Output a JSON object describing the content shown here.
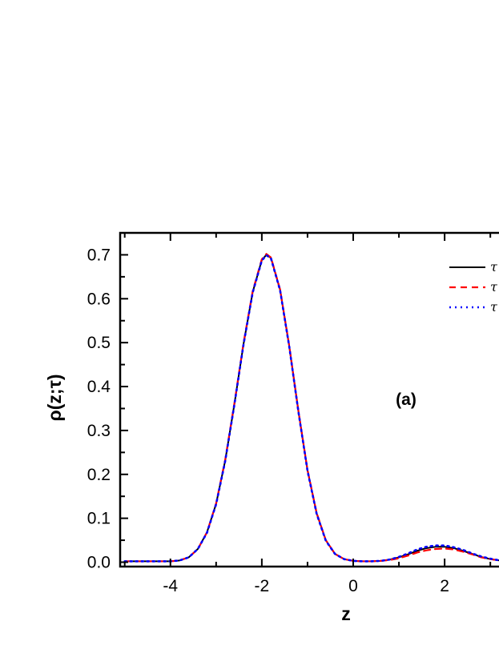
{
  "chart_data": {
    "type": "line",
    "xlabel": "z",
    "ylabel": "ρ(z;τ)",
    "annotation": "(a)",
    "xlim": [
      -5.1,
      3.4
    ],
    "ylim": [
      -0.01,
      0.75
    ],
    "xticks": [
      -4,
      -2,
      0,
      2
    ],
    "xtick_labels": [
      "-4",
      "-2",
      "0",
      "2"
    ],
    "yticks": [
      0.0,
      0.1,
      0.2,
      0.3,
      0.4,
      0.5,
      0.6,
      0.7
    ],
    "ytick_labels": [
      "0.0",
      "0.1",
      "0.2",
      "0.3",
      "0.4",
      "0.5",
      "0.6",
      "0.7"
    ],
    "grid": false,
    "legend_position": "top-right",
    "x": [
      -5.0,
      -4.5,
      -4.0,
      -3.8,
      -3.6,
      -3.4,
      -3.2,
      -3.0,
      -2.8,
      -2.6,
      -2.4,
      -2.2,
      -2.0,
      -1.9,
      -1.8,
      -1.6,
      -1.4,
      -1.2,
      -1.0,
      -0.8,
      -0.6,
      -0.4,
      -0.2,
      0.0,
      0.2,
      0.4,
      0.6,
      0.8,
      1.0,
      1.2,
      1.4,
      1.6,
      1.8,
      2.0,
      2.2,
      2.4,
      2.6,
      2.8,
      3.0,
      3.2,
      3.4
    ],
    "series": [
      {
        "name": "τ",
        "color": "#000000",
        "dash": "solid",
        "values": [
          0.002,
          0.002,
          0.002,
          0.004,
          0.011,
          0.03,
          0.068,
          0.133,
          0.232,
          0.36,
          0.497,
          0.615,
          0.688,
          0.7,
          0.693,
          0.62,
          0.492,
          0.344,
          0.209,
          0.111,
          0.05,
          0.019,
          0.007,
          0.003,
          0.002,
          0.002,
          0.003,
          0.006,
          0.011,
          0.018,
          0.026,
          0.032,
          0.035,
          0.035,
          0.032,
          0.026,
          0.019,
          0.012,
          0.007,
          0.004,
          0.003
        ]
      },
      {
        "name": "τ",
        "color": "#ff0000",
        "dash": "dashed",
        "values": [
          0.002,
          0.002,
          0.002,
          0.004,
          0.011,
          0.03,
          0.068,
          0.134,
          0.234,
          0.362,
          0.499,
          0.617,
          0.69,
          0.702,
          0.694,
          0.621,
          0.493,
          0.345,
          0.21,
          0.112,
          0.05,
          0.019,
          0.007,
          0.003,
          0.002,
          0.002,
          0.003,
          0.005,
          0.009,
          0.015,
          0.022,
          0.027,
          0.03,
          0.031,
          0.029,
          0.024,
          0.018,
          0.011,
          0.007,
          0.004,
          0.003
        ]
      },
      {
        "name": "τ",
        "color": "#0000ff",
        "dash": "dotted",
        "values": [
          0.002,
          0.002,
          0.002,
          0.004,
          0.011,
          0.03,
          0.067,
          0.132,
          0.231,
          0.359,
          0.496,
          0.614,
          0.687,
          0.699,
          0.692,
          0.619,
          0.491,
          0.343,
          0.208,
          0.11,
          0.049,
          0.019,
          0.007,
          0.003,
          0.002,
          0.002,
          0.003,
          0.006,
          0.012,
          0.02,
          0.029,
          0.035,
          0.038,
          0.038,
          0.034,
          0.028,
          0.02,
          0.013,
          0.008,
          0.004,
          0.003
        ]
      }
    ]
  }
}
